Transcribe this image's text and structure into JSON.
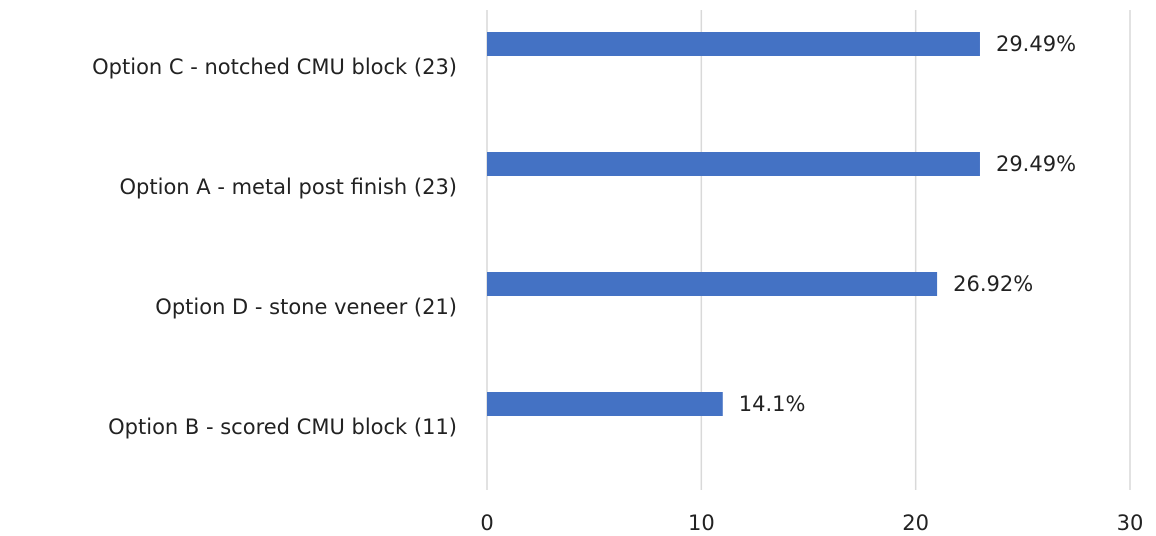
{
  "chart_data": {
    "type": "hbar",
    "categories": [
      "Option C - notched CMU block (23)",
      "Option A - metal post finish (23)",
      "Option D - stone veneer (21)",
      "Option B - scored CMU block (11)"
    ],
    "values": [
      23,
      23,
      21,
      11
    ],
    "percent_labels": [
      "29.49%",
      "29.49%",
      "26.92%",
      "14.1%"
    ],
    "color": "#4472c4",
    "xlim": [
      0,
      30
    ],
    "xticks": [
      0,
      10,
      20,
      30
    ],
    "grid": true
  }
}
